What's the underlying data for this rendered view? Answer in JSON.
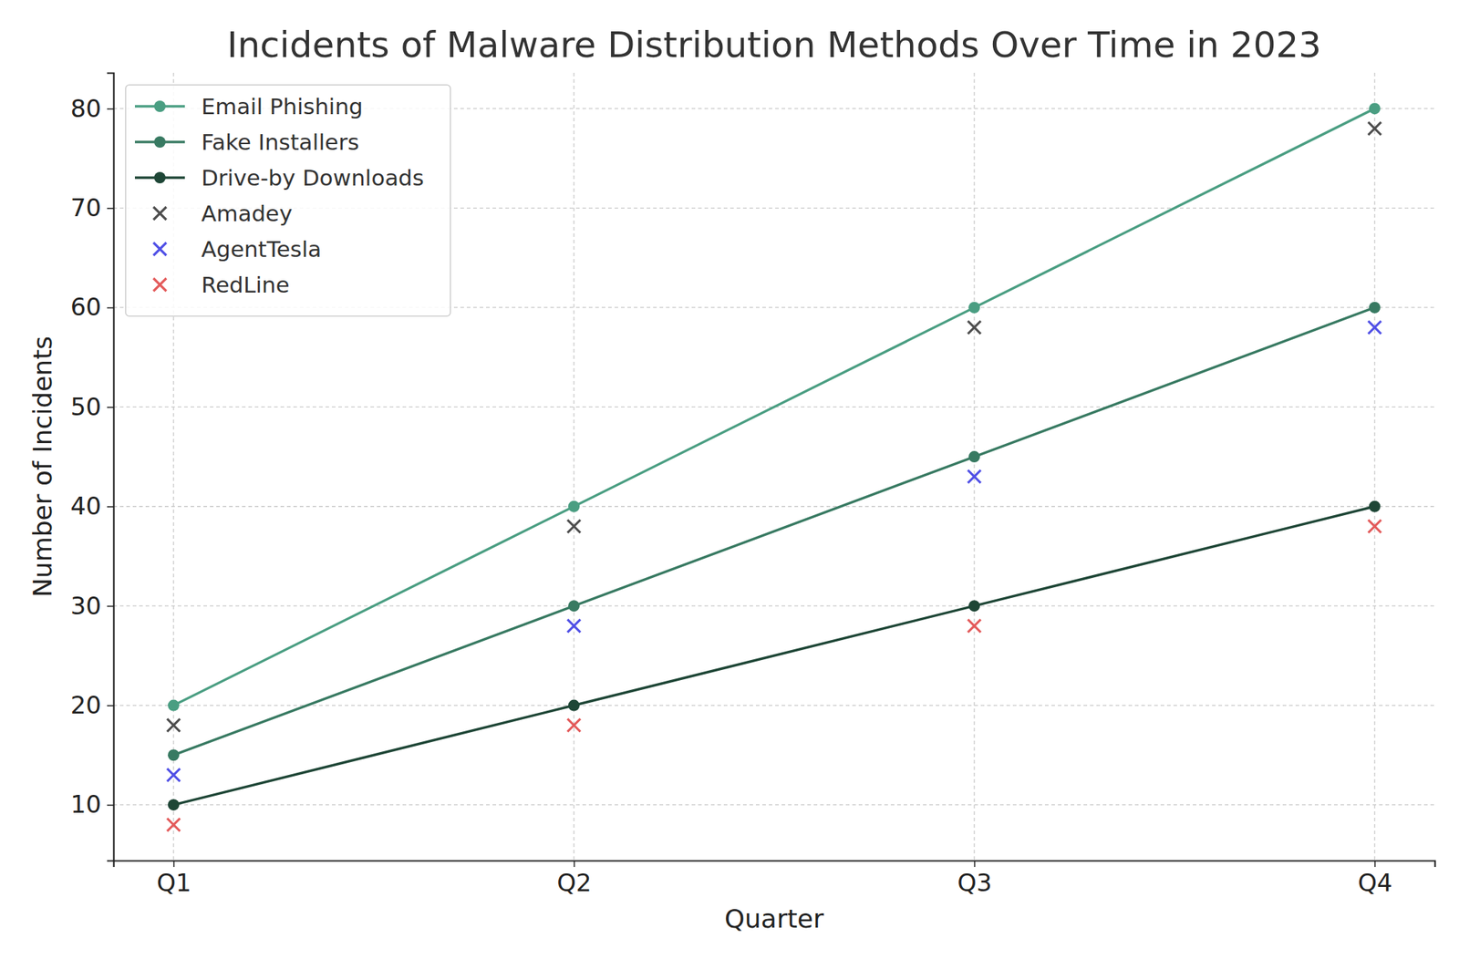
{
  "chart_data": {
    "type": "line",
    "title": "Incidents of Malware Distribution Methods Over Time in 2023",
    "x_label": "Quarter",
    "y_label": "Number of Incidents",
    "categories": [
      "Q1",
      "Q2",
      "Q3",
      "Q4"
    ],
    "ylim": [
      4.4,
      83.6
    ],
    "yticks": [
      10,
      20,
      30,
      40,
      50,
      60,
      70,
      80
    ],
    "grid": true,
    "legend": "upper left",
    "series": [
      {
        "name": "Email Phishing",
        "type": "line",
        "marker": "o",
        "color": "#4a9e82",
        "values": [
          20,
          40,
          60,
          80
        ]
      },
      {
        "name": "Fake Installers",
        "type": "line",
        "marker": "o",
        "color": "#387a62",
        "values": [
          15,
          30,
          45,
          60
        ]
      },
      {
        "name": "Drive-by Downloads",
        "type": "line",
        "marker": "o",
        "color": "#1e4636",
        "values": [
          10,
          20,
          30,
          40
        ]
      },
      {
        "name": "Amadey",
        "type": "scatter",
        "marker": "x",
        "color": "#4d4d4d",
        "values": [
          18,
          38,
          58,
          78
        ]
      },
      {
        "name": "AgentTesla",
        "type": "scatter",
        "marker": "x",
        "color": "#4f4fe6",
        "values": [
          13,
          28,
          43,
          58
        ]
      },
      {
        "name": "RedLine",
        "type": "scatter",
        "marker": "x",
        "color": "#e35a5a",
        "values": [
          8,
          18,
          28,
          38
        ]
      }
    ]
  }
}
